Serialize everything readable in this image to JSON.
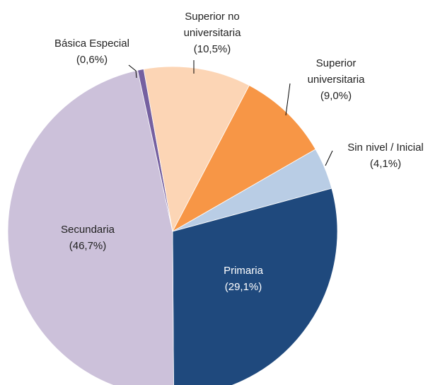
{
  "chart_data": {
    "type": "pie",
    "categories": [
      "Sin nivel / Inicial",
      "Primaria",
      "Secundaria",
      "Básica Especial",
      "Superior no universitaria",
      "Superior universitaria"
    ],
    "values": [
      4.1,
      29.1,
      46.7,
      0.6,
      10.5,
      9.0
    ],
    "value_labels": [
      "(4,1%)",
      "(29,1%)",
      "(46,7%)",
      "(0,6%)",
      "(10,5%)",
      "(9,0%)"
    ],
    "colors": [
      "#b9cde5",
      "#1f497d",
      "#ccc1da",
      "#7560a0",
      "#fcd5b5",
      "#f79646"
    ]
  }
}
